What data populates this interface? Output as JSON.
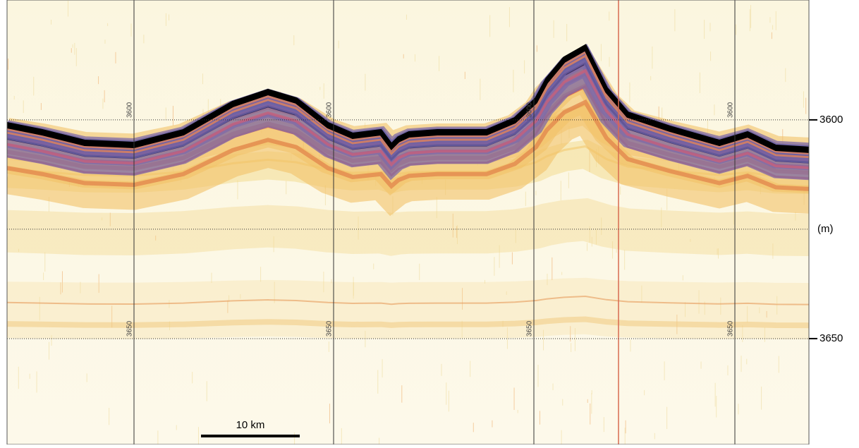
{
  "depth_axis": {
    "label": "(m)",
    "ticks": [
      3600,
      3650
    ],
    "lim": [
      3572.6,
      3674.2
    ]
  },
  "grid_columns": [
    {
      "top": 3600,
      "bottom": 3650
    },
    {
      "top": 3600,
      "bottom": 3650
    },
    {
      "top": 3600,
      "bottom": 3650
    },
    {
      "top": 3600,
      "bottom": 3650
    }
  ],
  "scale_bar": {
    "label": "10 km"
  }
}
